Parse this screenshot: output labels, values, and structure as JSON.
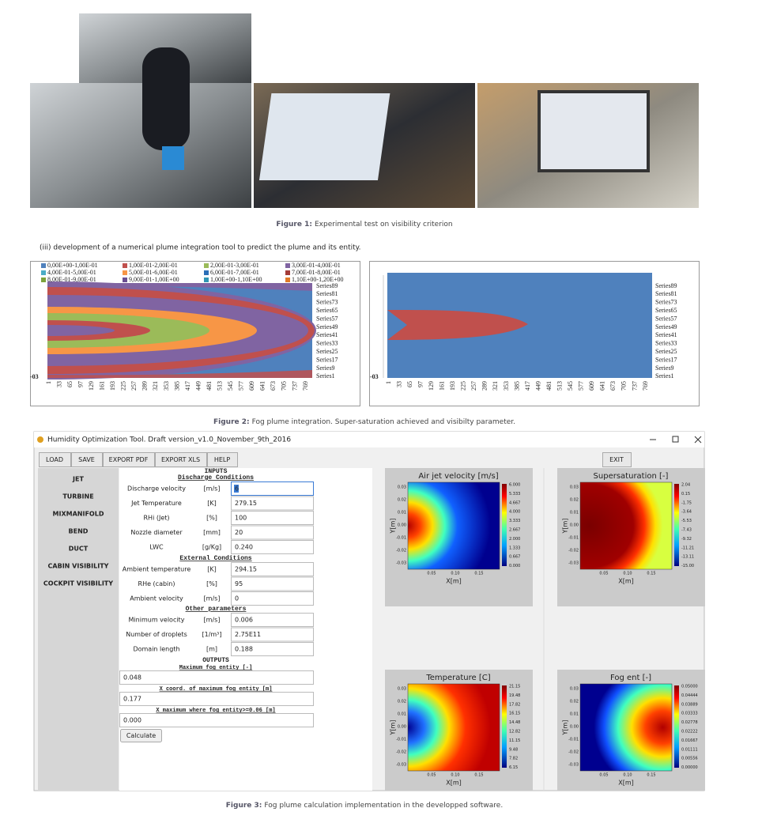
{
  "figure1": {
    "caption_label": "Figure 1:",
    "caption": "Experimental test on visibility criterion"
  },
  "paragraph": "(iii) development of a numerical plume integration tool to predict the plume and its entity.",
  "figure2": {
    "legend": [
      {
        "label": "0,00E+00-1,00E-01",
        "color": "#4f81bd"
      },
      {
        "label": "1,00E-01-2,00E-01",
        "color": "#c0504d"
      },
      {
        "label": "2,00E-01-3,00E-01",
        "color": "#9bbb59"
      },
      {
        "label": "3,00E-01-4,00E-01",
        "color": "#8064a2"
      },
      {
        "label": "4,00E-01-5,00E-01",
        "color": "#4bacc6"
      },
      {
        "label": "5,00E-01-6,00E-01",
        "color": "#f79646"
      },
      {
        "label": "6,00E-01-7,00E-01",
        "color": "#2c6fb7"
      },
      {
        "label": "7,00E-01-8,00E-01",
        "color": "#a33b38"
      },
      {
        "label": "8,00E-01-9,00E-01",
        "color": "#7da23c"
      },
      {
        "label": "9,00E-01-1,00E+00",
        "color": "#6a4f92"
      },
      {
        "label": "1,00E+00-1,10E+00",
        "color": "#3196b4"
      },
      {
        "label": "1,10E+00-1,20E+00",
        "color": "#e07a28"
      }
    ],
    "series_labels": [
      "Series89",
      "Series81",
      "Series73",
      "Series65",
      "Series57",
      "Series49",
      "Series41",
      "Series33",
      "Series25",
      "Series17",
      "Series9",
      "Series1"
    ],
    "x_ticks": [
      "1",
      "33",
      "65",
      "97",
      "129",
      "161",
      "193",
      "225",
      "257",
      "289",
      "321",
      "353",
      "385",
      "417",
      "449",
      "481",
      "513",
      "545",
      "577",
      "609",
      "641",
      "673",
      "705",
      "737",
      "769"
    ],
    "y_label": "-03",
    "caption_label": "Figure 2:",
    "caption": "Fog plume integration. Super-saturation achieved and visibilty parameter."
  },
  "figure3": {
    "window_title": "Humidity Optimization Tool. Draft version_v1.0_November_9th_2016",
    "toolbar": [
      "LOAD",
      "SAVE",
      "EXPORT PDF",
      "EXPORT XLS",
      "HELP"
    ],
    "exit": "EXIT",
    "sidebar": [
      "JET",
      "TURBINE",
      "MIXMANIFOLD",
      "BEND",
      "DUCT",
      "CABIN VISIBILITY",
      "COCKPIT VISIBILITY"
    ],
    "inputs_title": "INPUTS",
    "sections": [
      {
        "title": "Discharge Conditions",
        "rows": [
          {
            "label": "Discharge velocity",
            "unit": "[m/s]",
            "value": "6"
          },
          {
            "label": "Jet Temperature",
            "unit": "[K]",
            "value": "279.15"
          },
          {
            "label": "RHi (Jet)",
            "unit": "[%]",
            "value": "100"
          },
          {
            "label": "Nozzle diameter",
            "unit": "[mm]",
            "value": "20"
          },
          {
            "label": "LWC",
            "unit": "[g/Kg]",
            "value": "0.240"
          }
        ]
      },
      {
        "title": "External Conditions",
        "rows": [
          {
            "label": "Ambient temperature",
            "unit": "[K]",
            "value": "294.15"
          },
          {
            "label": "RHe (cabin)",
            "unit": "[%]",
            "value": "95"
          },
          {
            "label": "Ambient velocity",
            "unit": "[m/s]",
            "value": "0"
          }
        ]
      },
      {
        "title": "Other parameters",
        "rows": [
          {
            "label": "Minimum velocity",
            "unit": "[m/s]",
            "value": "0.006"
          },
          {
            "label": "Number of droplets",
            "unit": "[1/m³]",
            "value": "2.75E11"
          },
          {
            "label": "Domain length",
            "unit": "[m]",
            "value": "0.188"
          }
        ]
      }
    ],
    "outputs_title": "OUTPUTS",
    "outputs": [
      {
        "label": "Maximum fog entity [-]",
        "value": "0.048"
      },
      {
        "label": "X coord. of maximum fog entity [m]",
        "value": "0.177"
      },
      {
        "label": "X maximum where fog entity>=0.06 [m]",
        "value": "0.000"
      }
    ],
    "calculate": "Calculate",
    "plots": [
      {
        "title": "Air jet velocity [m/s]",
        "colorbar": [
          "6.000",
          "5.333",
          "4.667",
          "4.000",
          "3.333",
          "2.667",
          "2.000",
          "1.333",
          "0.667",
          "0.000"
        ]
      },
      {
        "title": "Supersaturation [-]",
        "colorbar": [
          "2.04",
          "0.15",
          "-1.75",
          "-3.64",
          "-5.53",
          "-7.43",
          "-9.32",
          "-11.21",
          "-13.11",
          "-15.00"
        ]
      },
      {
        "title": "Temperature [C]",
        "colorbar": [
          "21.15",
          "19.48",
          "17.82",
          "16.15",
          "14.48",
          "12.82",
          "11.15",
          "9.48",
          "7.82",
          "6.15"
        ]
      },
      {
        "title": "Fog ent [-]",
        "colorbar": [
          "0.05000",
          "0.04444",
          "0.03889",
          "0.03333",
          "0.02778",
          "0.02222",
          "0.01667",
          "0.01111",
          "0.00556",
          "0.00000"
        ]
      }
    ],
    "y_axis_label": "Y[m]",
    "x_axis_label": "X[m]",
    "y_ticks": [
      "0.03",
      "0.02",
      "0.01",
      "0.00",
      "-0.01",
      "-0.02",
      "-0.03"
    ],
    "x_ticks": [
      "0.05",
      "0.10",
      "0.15"
    ],
    "caption_label": "Figure 3:",
    "caption": "Fog plume calculation implementation in the developped software."
  }
}
